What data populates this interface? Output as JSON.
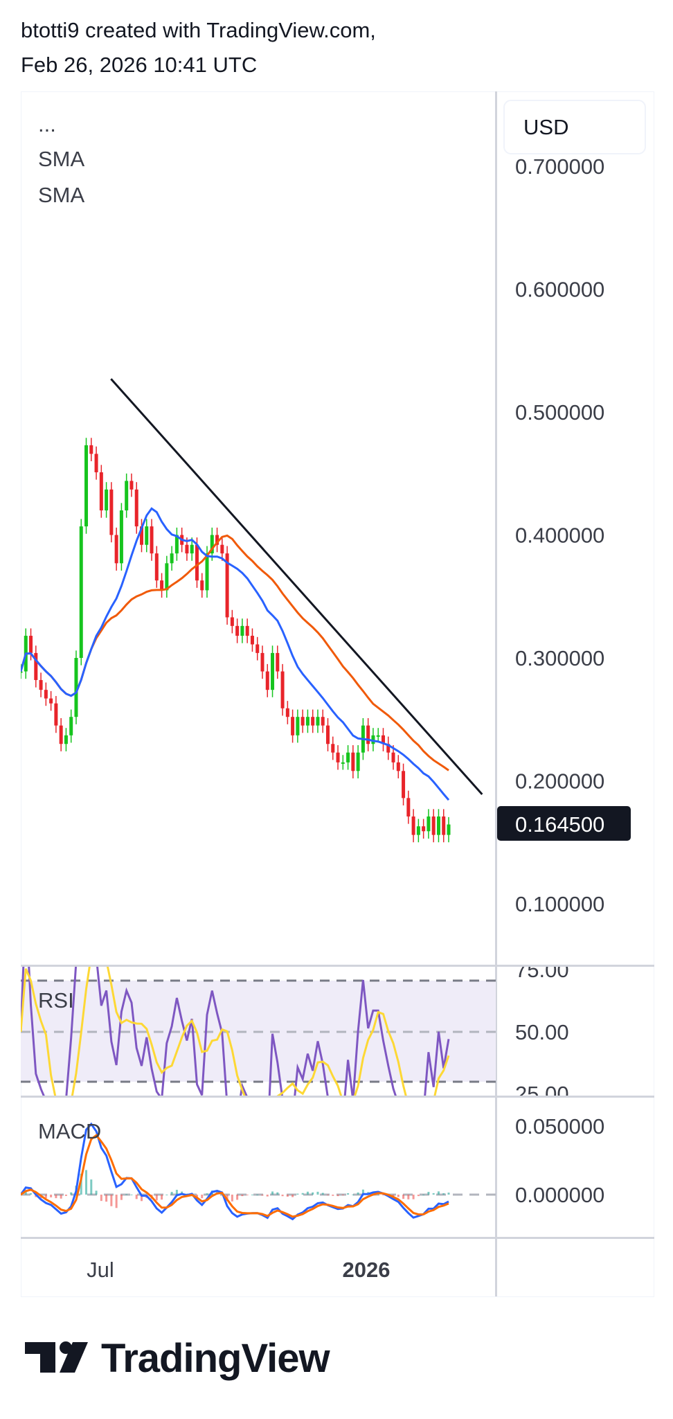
{
  "header": {
    "line1": "btotti9 created with TradingView.com,",
    "line2": "Feb 26, 2026 10:41 UTC"
  },
  "legend": {
    "symbol": "...",
    "sma1": "SMA",
    "sma2": "SMA",
    "rsi": "RSI",
    "macd": "MACD"
  },
  "currency_button": "USD",
  "last_price_label": "0.164500",
  "logo_text": "TradingView",
  "colors": {
    "up": "#16c41e",
    "down": "#e8242a",
    "sma_fast": "#2962ff",
    "sma_slow": "#f05a0a",
    "trendline": "#131722",
    "rsi": "#7e57c2",
    "rsi_ma": "#fdd835",
    "rsi_band": "#efecf8",
    "macd": "#2962ff",
    "signal": "#ff6d00",
    "hist_up": "#26a69a",
    "hist_down": "#ef5350"
  },
  "chart_data": [
    {
      "type": "candlestick",
      "pane": "price",
      "x_start": "2025-05-08",
      "x_end": "2026-02-26",
      "ylim": [
        0.08,
        0.72
      ],
      "y_ticks": [
        "0.700000",
        "0.600000",
        "0.500000",
        "0.400000",
        "0.300000",
        "0.200000",
        "0.100000"
      ],
      "x_ticks": [
        {
          "label": "Jul",
          "date": "2025-07-01"
        },
        {
          "label": "2026",
          "date": "2026-01-01",
          "bold": true
        }
      ],
      "closes": [
        0.289,
        0.318,
        0.304,
        0.282,
        0.274,
        0.267,
        0.263,
        0.245,
        0.23,
        0.237,
        0.252,
        0.3,
        0.407,
        0.473,
        0.466,
        0.451,
        0.42,
        0.437,
        0.4,
        0.377,
        0.42,
        0.444,
        0.437,
        0.407,
        0.392,
        0.407,
        0.385,
        0.363,
        0.355,
        0.377,
        0.385,
        0.4,
        0.392,
        0.385,
        0.392,
        0.363,
        0.355,
        0.385,
        0.4,
        0.392,
        0.385,
        0.333,
        0.326,
        0.318,
        0.326,
        0.318,
        0.311,
        0.304,
        0.289,
        0.274,
        0.304,
        0.289,
        0.259,
        0.252,
        0.237,
        0.252,
        0.245,
        0.252,
        0.245,
        0.252,
        0.245,
        0.23,
        0.223,
        0.215,
        0.215,
        0.223,
        0.208,
        0.223,
        0.245,
        0.23,
        0.237,
        0.237,
        0.23,
        0.223,
        0.215,
        0.208,
        0.186,
        0.171,
        0.156,
        0.163,
        0.159,
        0.171,
        0.156,
        0.171,
        0.156,
        0.1645
      ],
      "overlays": [
        {
          "label": "SMA",
          "color": "#2962ff"
        },
        {
          "label": "SMA",
          "color": "#f05a0a"
        }
      ],
      "trendline": {
        "from": {
          "date": "2025-07-09",
          "price": 0.527
        },
        "to": {
          "date": "2026-03-21",
          "price": 0.189
        }
      },
      "last_price": 0.1645
    },
    {
      "type": "line",
      "pane": "RSI",
      "y_ticks": [
        "75.00",
        "50.00",
        "25.00"
      ],
      "bands": [
        30,
        70
      ],
      "midline": 50
    },
    {
      "type": "line",
      "pane": "MACD",
      "y_ticks": [
        "0.050000",
        "0.000000"
      ]
    }
  ]
}
